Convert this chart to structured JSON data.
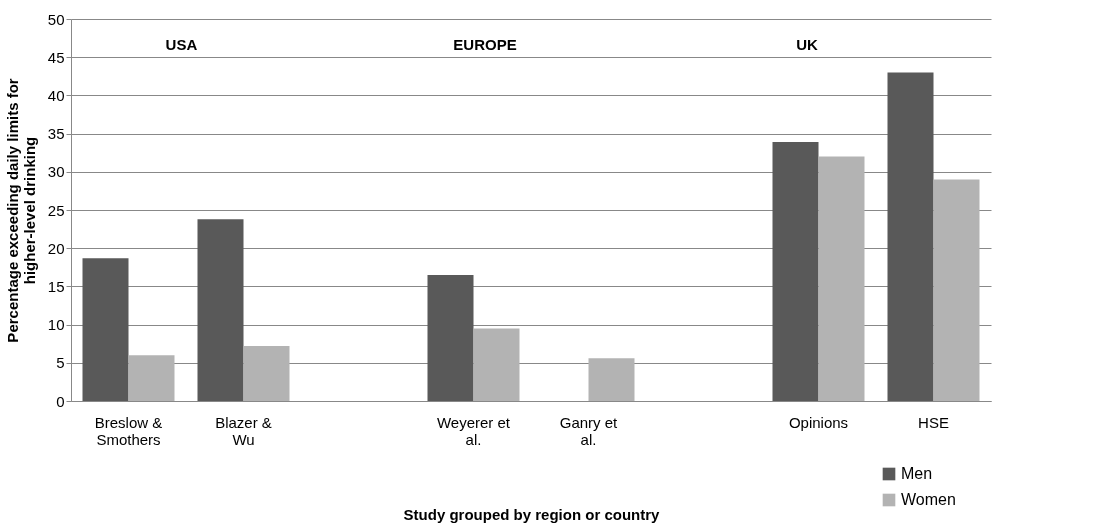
{
  "chart_data": {
    "type": "bar",
    "xlabel": "Study grouped by region or country",
    "ylabel": "Percentage exceeding daily limits for higher-level drinking",
    "categories": [
      "Breslow & Smothers",
      "Blazer & Wu",
      null,
      "Weyerer et al.",
      "Ganry et al.",
      null,
      "Opinions",
      "HSE"
    ],
    "series": [
      {
        "name": "Men",
        "color": "#595959",
        "values": [
          18.7,
          23.8,
          null,
          16.5,
          null,
          null,
          33.9,
          43
        ]
      },
      {
        "name": "Women",
        "color": "#b3b3b3",
        "values": [
          6,
          7.2,
          null,
          9.5,
          5.6,
          null,
          32,
          29
        ]
      }
    ],
    "ylim": [
      0,
      50
    ],
    "yticks": [
      0,
      5,
      10,
      15,
      20,
      25,
      30,
      35,
      40,
      45,
      50
    ],
    "grid": "y",
    "legend": "bottom right",
    "annotations": [
      "USA",
      "EUROPE",
      "UK"
    ]
  }
}
